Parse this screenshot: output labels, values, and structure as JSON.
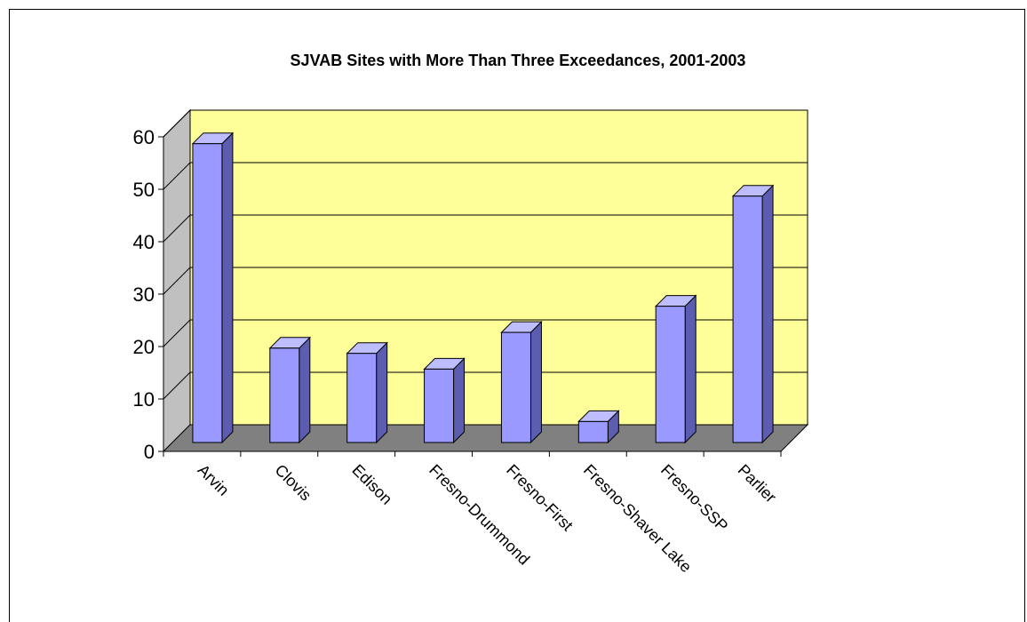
{
  "chart_data": {
    "type": "bar",
    "title": "SJVAB Sites with More Than Three Exceedances, 2001-2003",
    "xlabel": "",
    "ylabel": "",
    "categories": [
      "Arvin",
      "Clovis",
      "Edison",
      "Fresno-Drummond",
      "Fresno-First",
      "Fresno-Shaver Lake",
      "Fresno-SSP",
      "Parlier"
    ],
    "values": [
      57,
      18,
      17,
      14,
      21,
      4,
      26,
      47
    ],
    "ylim": [
      0,
      60
    ],
    "yticks": [
      "0",
      "10",
      "20",
      "30",
      "40",
      "50",
      "60"
    ],
    "grid": true,
    "legend": "none",
    "colors": {
      "bar_front": "#9999ff",
      "bar_side": "#5c5cb0",
      "bar_top": "#bdbdff",
      "wall": "#ffff99",
      "floor": "#808080",
      "left_wall": "#c0c0c0"
    }
  }
}
